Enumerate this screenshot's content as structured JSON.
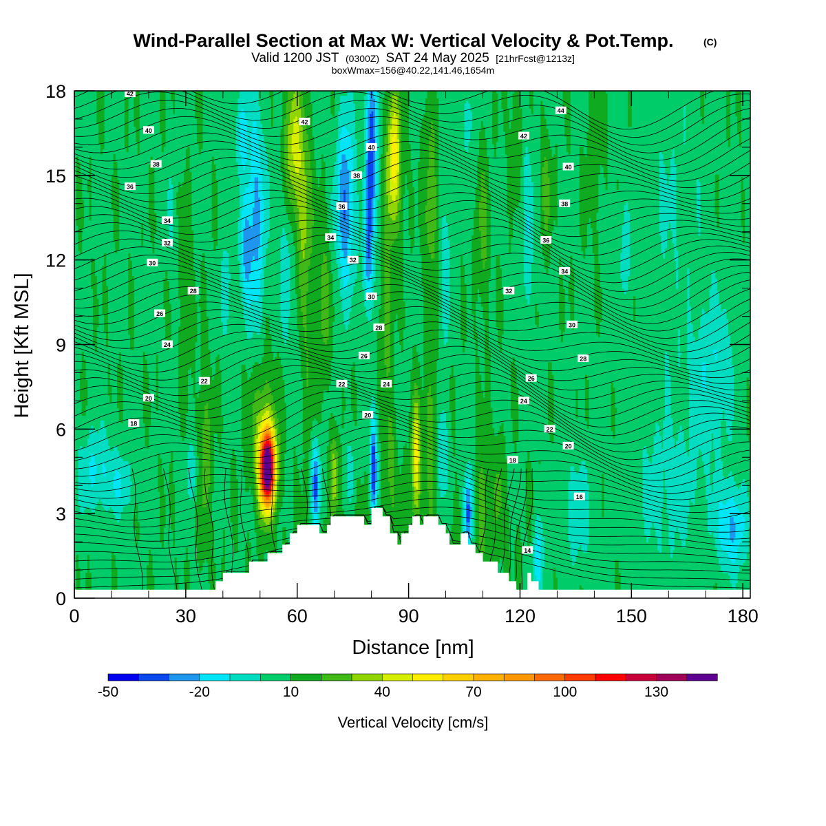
{
  "chart_data": {
    "type": "heatmap",
    "title": "Wind-Parallel Section at Max W: Vertical Velocity & Pot.Temp.",
    "title_mark": "(C)",
    "subtitle": {
      "valid_prefix": "Valid 1200 JST",
      "utc": "(0300Z)",
      "valid_date": "SAT 24 May 2025",
      "forecast": "[21hrFcst@1213z]"
    },
    "subtitle2": "boxWmax=156@40.22,141.46,1654m",
    "xlabel": "Distance [nm]",
    "ylabel": "Height [Kft MSL]",
    "xlim": [
      0,
      182
    ],
    "ylim": [
      0,
      18
    ],
    "x_ticks": [
      0,
      30,
      60,
      90,
      120,
      150,
      180
    ],
    "x_tick_labels": [
      "0",
      "30",
      "60",
      "90",
      "120",
      "150",
      "180"
    ],
    "y_ticks": [
      0,
      3,
      6,
      9,
      12,
      15,
      18
    ],
    "y_tick_labels": [
      "0",
      "3",
      "6",
      "9",
      "12",
      "15",
      "18"
    ],
    "colorbar": {
      "title": "Vertical Velocity [cm/s]",
      "levels": [
        -50,
        -40,
        -30,
        -20,
        -10,
        0,
        10,
        20,
        30,
        40,
        50,
        60,
        70,
        80,
        90,
        100,
        110,
        120,
        130,
        140,
        150
      ],
      "colors": [
        "#0000ee",
        "#0a48ee",
        "#1e96ee",
        "#00e6f8",
        "#00ddc0",
        "#00cc6a",
        "#10aa20",
        "#40b818",
        "#90d400",
        "#d8ee00",
        "#ffee00",
        "#ffd000",
        "#ffb000",
        "#ff9800",
        "#ff6a00",
        "#ff3c00",
        "#ff0000",
        "#c8003c",
        "#a0005a",
        "#600090"
      ],
      "labels": [
        "-50",
        "-20",
        "10",
        "40",
        "70",
        "100",
        "130"
      ],
      "label_values": [
        -50,
        -20,
        10,
        40,
        70,
        100,
        130
      ]
    },
    "terrain": [
      [
        0,
        0.3
      ],
      [
        38,
        0.3
      ],
      [
        38,
        0.6
      ],
      [
        40,
        0.6
      ],
      [
        40,
        0.9
      ],
      [
        47,
        0.9
      ],
      [
        47,
        1.3
      ],
      [
        52,
        1.3
      ],
      [
        52,
        1.6
      ],
      [
        56,
        1.6
      ],
      [
        56,
        1.9
      ],
      [
        58,
        1.9
      ],
      [
        58,
        2.3
      ],
      [
        60,
        2.3
      ],
      [
        60,
        2.6
      ],
      [
        66,
        2.6
      ],
      [
        66,
        2.3
      ],
      [
        68,
        2.3
      ],
      [
        68,
        2.6
      ],
      [
        69,
        2.6
      ],
      [
        69,
        2.9
      ],
      [
        78,
        2.9
      ],
      [
        78,
        2.6
      ],
      [
        80,
        2.6
      ],
      [
        80,
        3.2
      ],
      [
        83,
        3.2
      ],
      [
        83,
        2.9
      ],
      [
        85,
        2.9
      ],
      [
        85,
        2.3
      ],
      [
        87,
        2.3
      ],
      [
        87,
        1.9
      ],
      [
        88,
        1.9
      ],
      [
        88,
        2.3
      ],
      [
        90,
        2.3
      ],
      [
        90,
        2.6
      ],
      [
        91,
        2.6
      ],
      [
        91,
        2.9
      ],
      [
        93,
        2.9
      ],
      [
        93,
        2.6
      ],
      [
        94,
        2.6
      ],
      [
        94,
        2.9
      ],
      [
        98,
        2.9
      ],
      [
        98,
        2.6
      ],
      [
        100,
        2.6
      ],
      [
        100,
        2.3
      ],
      [
        101,
        2.3
      ],
      [
        101,
        1.9
      ],
      [
        104,
        1.9
      ],
      [
        104,
        2.3
      ],
      [
        106,
        2.3
      ],
      [
        106,
        1.9
      ],
      [
        108,
        1.9
      ],
      [
        108,
        1.6
      ],
      [
        110,
        1.6
      ],
      [
        110,
        1.3
      ],
      [
        114,
        1.3
      ],
      [
        114,
        0.9
      ],
      [
        117,
        0.9
      ],
      [
        117,
        0.6
      ],
      [
        119,
        0.6
      ],
      [
        119,
        0.3
      ],
      [
        122,
        0.3
      ],
      [
        122,
        0.9
      ],
      [
        123,
        0.9
      ],
      [
        123,
        0.6
      ],
      [
        125,
        0.6
      ],
      [
        125,
        0.3
      ],
      [
        182,
        0.3
      ]
    ],
    "theta_contours": [
      {
        "value": 14,
        "label_x": 122,
        "label_y": 1.7
      },
      {
        "value": 16,
        "label_x": 136,
        "label_y": 3.6
      },
      {
        "value": 18,
        "label_x": 16,
        "label_y": 6.2
      },
      {
        "value": 18,
        "label_x": 118,
        "label_y": 4.9
      },
      {
        "value": 20,
        "label_x": 20,
        "label_y": 7.1
      },
      {
        "value": 20,
        "label_x": 133,
        "label_y": 5.4
      },
      {
        "value": 20,
        "label_x": 79,
        "label_y": 6.5
      },
      {
        "value": 22,
        "label_x": 35,
        "label_y": 7.7
      },
      {
        "value": 22,
        "label_x": 72,
        "label_y": 7.6
      },
      {
        "value": 22,
        "label_x": 128,
        "label_y": 6.0
      },
      {
        "value": 24,
        "label_x": 25,
        "label_y": 9.0
      },
      {
        "value": 24,
        "label_x": 84,
        "label_y": 7.6
      },
      {
        "value": 24,
        "label_x": 121,
        "label_y": 7.0
      },
      {
        "value": 26,
        "label_x": 23,
        "label_y": 10.1
      },
      {
        "value": 26,
        "label_x": 78,
        "label_y": 8.6
      },
      {
        "value": 26,
        "label_x": 123,
        "label_y": 7.8
      },
      {
        "value": 28,
        "label_x": 32,
        "label_y": 10.9
      },
      {
        "value": 28,
        "label_x": 82,
        "label_y": 9.6
      },
      {
        "value": 28,
        "label_x": 137,
        "label_y": 8.5
      },
      {
        "value": 30,
        "label_x": 21,
        "label_y": 11.9
      },
      {
        "value": 30,
        "label_x": 80,
        "label_y": 10.7
      },
      {
        "value": 30,
        "label_x": 134,
        "label_y": 9.7
      },
      {
        "value": 32,
        "label_x": 25,
        "label_y": 12.6
      },
      {
        "value": 32,
        "label_x": 75,
        "label_y": 12.0
      },
      {
        "value": 32,
        "label_x": 117,
        "label_y": 10.9
      },
      {
        "value": 34,
        "label_x": 25,
        "label_y": 13.4
      },
      {
        "value": 34,
        "label_x": 69,
        "label_y": 12.8
      },
      {
        "value": 34,
        "label_x": 132,
        "label_y": 11.6
      },
      {
        "value": 36,
        "label_x": 15,
        "label_y": 14.6
      },
      {
        "value": 36,
        "label_x": 72,
        "label_y": 13.9
      },
      {
        "value": 36,
        "label_x": 127,
        "label_y": 12.7
      },
      {
        "value": 38,
        "label_x": 22,
        "label_y": 15.4
      },
      {
        "value": 38,
        "label_x": 76,
        "label_y": 15.0
      },
      {
        "value": 38,
        "label_x": 132,
        "label_y": 14.0
      },
      {
        "value": 40,
        "label_x": 20,
        "label_y": 16.6
      },
      {
        "value": 40,
        "label_x": 80,
        "label_y": 16.0
      },
      {
        "value": 40,
        "label_x": 133,
        "label_y": 15.3
      },
      {
        "value": 42,
        "label_x": 15,
        "label_y": 17.9
      },
      {
        "value": 42,
        "label_x": 62,
        "label_y": 16.9
      },
      {
        "value": 42,
        "label_x": 121,
        "label_y": 16.4
      },
      {
        "value": 44,
        "label_x": 131,
        "label_y": 17.3
      }
    ]
  }
}
